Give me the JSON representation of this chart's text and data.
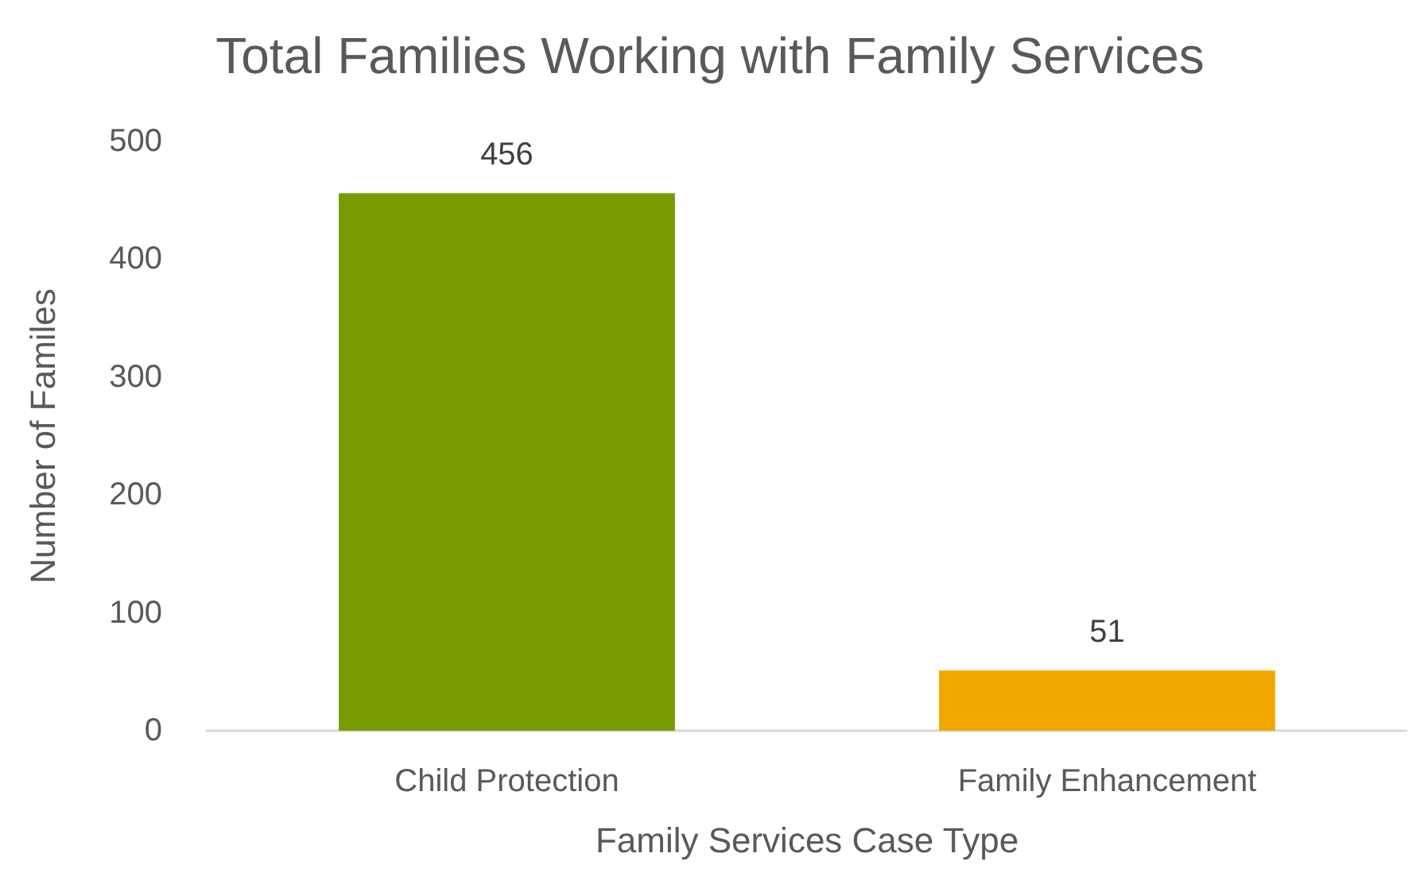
{
  "chart_data": {
    "type": "bar",
    "title": "Total Families Working with Family Services",
    "xlabel": "Family Services Case Type",
    "ylabel": "Number of Familes",
    "categories": [
      "Child Protection",
      "Family Enhancement"
    ],
    "values": [
      456,
      51
    ],
    "colors": [
      "#789b00",
      "#f0a800"
    ],
    "ylim": [
      0,
      500
    ],
    "yticks": [
      0,
      100,
      200,
      300,
      400,
      500
    ],
    "grid": false,
    "data_labels": true
  }
}
